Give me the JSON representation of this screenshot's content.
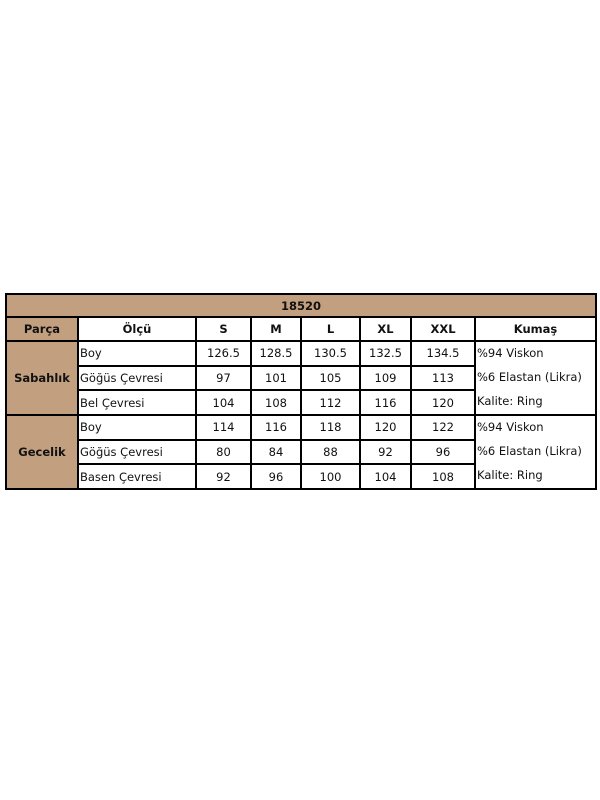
{
  "title": "18520",
  "colors": {
    "header_bg": "#c29f7f",
    "border": "#000000"
  },
  "headers": [
    "Parça",
    "Ölçü",
    "S",
    "M",
    "L",
    "XL",
    "XXL",
    "Kumaş"
  ],
  "groups": [
    {
      "name": "Sabahlık",
      "rows": [
        {
          "label": "Boy",
          "values": [
            "126.5",
            "128.5",
            "130.5",
            "132.5",
            "134.5"
          ]
        },
        {
          "label": "Göğüs Çevresi",
          "values": [
            "97",
            "101",
            "105",
            "109",
            "113"
          ]
        },
        {
          "label": "Bel Çevresi",
          "values": [
            "104",
            "108",
            "112",
            "116",
            "120"
          ]
        }
      ],
      "fabric": [
        "%94 Viskon",
        "%6 Elastan (Likra)",
        "Kalite: Ring"
      ]
    },
    {
      "name": "Gecelik",
      "rows": [
        {
          "label": "Boy",
          "values": [
            "114",
            "116",
            "118",
            "120",
            "122"
          ]
        },
        {
          "label": "Göğüs Çevresi",
          "values": [
            "80",
            "84",
            "88",
            "92",
            "96"
          ]
        },
        {
          "label": "Basen Çevresi",
          "values": [
            "92",
            "96",
            "100",
            "104",
            "108"
          ]
        }
      ],
      "fabric": [
        "%94 Viskon",
        "%6 Elastan (Likra)",
        "Kalite: Ring"
      ]
    }
  ]
}
